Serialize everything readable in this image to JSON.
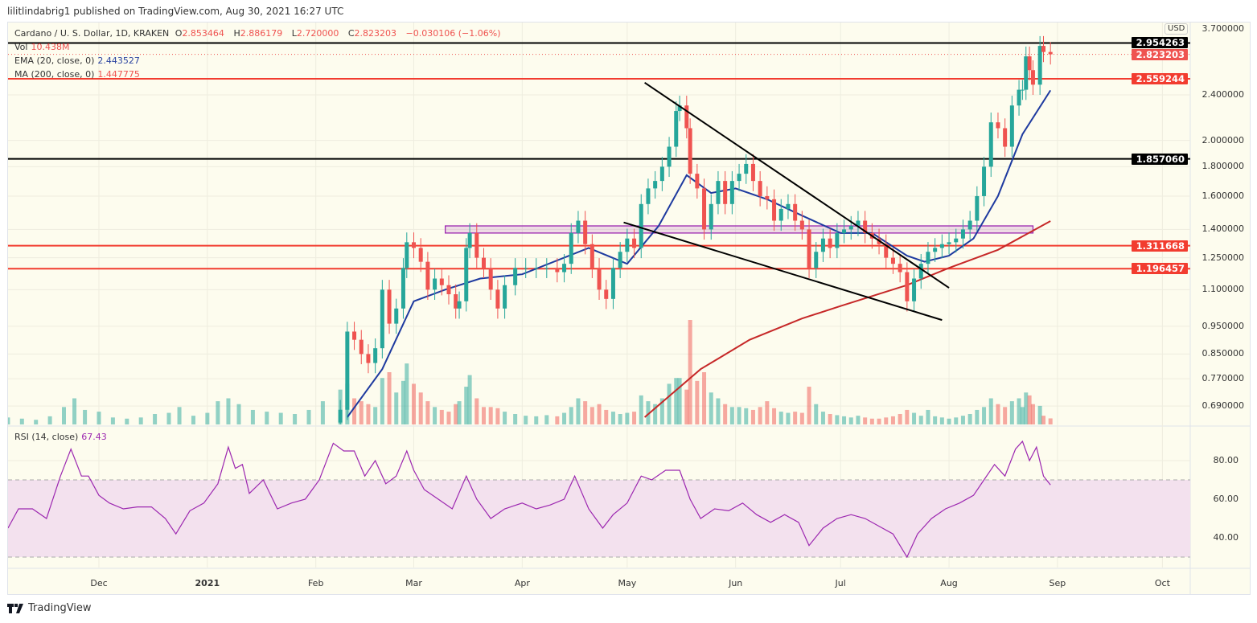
{
  "header": {
    "published": "lilitlindabrig1 published on TradingView.com, Aug 30, 2021 16:27 UTC"
  },
  "legend": {
    "symbol": "Cardano / U. S. Dollar, 1D, KRAKEN",
    "o_label": "O",
    "o": "2.853464",
    "h_label": "H",
    "h": "2.886179",
    "l_label": "L",
    "l": "2.720000",
    "c_label": "C",
    "c": "2.823203",
    "change": "−0.030106 (−1.06%)",
    "vol_label": "Vol",
    "vol": "10.438M",
    "ema_label": "EMA (20, close, 0)",
    "ema": "2.443527",
    "ma_label": "MA (200, close, 0)",
    "ma": "1.447775",
    "rsi_label": "RSI (14, close)",
    "rsi": "67.43"
  },
  "price_axis": {
    "currency": "USD",
    "ticks": [
      "3.700000",
      "2.400000",
      "2.000000",
      "1.800000",
      "1.600000",
      "1.400000",
      "1.250000",
      "1.100000",
      "0.950000",
      "0.850000",
      "0.770000",
      "0.690000"
    ]
  },
  "rsi_axis": {
    "ticks": [
      "80.00",
      "60.00",
      "40.00"
    ]
  },
  "time_axis": {
    "ticks": [
      "Dec",
      "2021",
      "Feb",
      "Mar",
      "Apr",
      "May",
      "Jun",
      "Jul",
      "Aug",
      "Sep",
      "Oct"
    ]
  },
  "price_tags": [
    {
      "value": "2.954263",
      "color": "#000000"
    },
    {
      "value": "2.823203",
      "color": "#ef5350"
    },
    {
      "value": "2.559244",
      "color": "#f23c2f"
    },
    {
      "value": "1.857060",
      "color": "#000000"
    },
    {
      "value": "1.311668",
      "color": "#f23c2f"
    },
    {
      "value": "1.196457",
      "color": "#f23c2f"
    }
  ],
  "colors": {
    "up": "#26a69a",
    "down": "#ef5350",
    "ema": "#1e3a9f",
    "ma": "#c62828",
    "rsi": "#9c27b0",
    "rsi_band": "#f3e1ee",
    "zone": "#9c27b0"
  },
  "footer": {
    "brand": "TradingView"
  },
  "chart_data": {
    "type": "candlestick",
    "scale": "log",
    "ylim": [
      0.66,
      3.7
    ],
    "xlim": [
      "2020-11-05",
      "2021-10-10"
    ],
    "candles": [
      [
        "2021-02-08",
        0.68,
        60
      ],
      [
        "2021-02-10",
        0.93,
        70
      ],
      [
        "2021-02-12",
        0.9,
        45
      ],
      [
        "2021-02-14",
        0.85,
        40
      ],
      [
        "2021-02-16",
        0.82,
        35
      ],
      [
        "2021-02-18",
        0.87,
        30
      ],
      [
        "2021-02-20",
        1.1,
        80
      ],
      [
        "2021-02-22",
        0.96,
        90
      ],
      [
        "2021-02-24",
        1.02,
        55
      ],
      [
        "2021-02-26",
        1.2,
        75
      ],
      [
        "2021-02-27",
        1.33,
        105
      ],
      [
        "2021-03-01",
        1.3,
        70
      ],
      [
        "2021-03-03",
        1.23,
        55
      ],
      [
        "2021-03-05",
        1.1,
        40
      ],
      [
        "2021-03-07",
        1.15,
        30
      ],
      [
        "2021-03-09",
        1.12,
        25
      ],
      [
        "2021-03-11",
        1.08,
        22
      ],
      [
        "2021-03-13",
        1.02,
        35
      ],
      [
        "2021-03-14",
        1.05,
        40
      ],
      [
        "2021-03-16",
        1.3,
        65
      ],
      [
        "2021-03-17",
        1.38,
        85
      ],
      [
        "2021-03-19",
        1.25,
        45
      ],
      [
        "2021-03-21",
        1.2,
        30
      ],
      [
        "2021-03-23",
        1.1,
        30
      ],
      [
        "2021-03-25",
        1.02,
        28
      ],
      [
        "2021-03-27",
        1.12,
        22
      ],
      [
        "2021-03-30",
        1.2,
        18
      ],
      [
        "2021-04-02",
        1.2,
        15
      ],
      [
        "2021-04-05",
        1.2,
        14
      ],
      [
        "2021-04-08",
        1.2,
        16
      ],
      [
        "2021-04-11",
        1.18,
        14
      ],
      [
        "2021-04-13",
        1.22,
        20
      ],
      [
        "2021-04-15",
        1.38,
        30
      ],
      [
        "2021-04-17",
        1.45,
        45
      ],
      [
        "2021-04-19",
        1.32,
        40
      ],
      [
        "2021-04-21",
        1.2,
        30
      ],
      [
        "2021-04-23",
        1.1,
        35
      ],
      [
        "2021-04-25",
        1.06,
        25
      ],
      [
        "2021-04-27",
        1.2,
        22
      ],
      [
        "2021-04-29",
        1.28,
        18
      ],
      [
        "2021-05-01",
        1.35,
        20
      ],
      [
        "2021-05-03",
        1.3,
        22
      ],
      [
        "2021-05-05",
        1.55,
        50
      ],
      [
        "2021-05-07",
        1.65,
        40
      ],
      [
        "2021-05-09",
        1.7,
        35
      ],
      [
        "2021-05-11",
        1.8,
        45
      ],
      [
        "2021-05-13",
        1.95,
        70
      ],
      [
        "2021-05-15",
        2.25,
        80
      ],
      [
        "2021-05-16",
        2.3,
        80
      ],
      [
        "2021-05-18",
        2.1,
        60
      ],
      [
        "2021-05-19",
        1.75,
        180
      ],
      [
        "2021-05-21",
        1.65,
        75
      ],
      [
        "2021-05-23",
        1.4,
        90
      ],
      [
        "2021-05-25",
        1.55,
        55
      ],
      [
        "2021-05-27",
        1.7,
        45
      ],
      [
        "2021-05-29",
        1.55,
        35
      ],
      [
        "2021-05-31",
        1.7,
        30
      ],
      [
        "2021-06-02",
        1.75,
        30
      ],
      [
        "2021-06-04",
        1.82,
        28
      ],
      [
        "2021-06-06",
        1.7,
        25
      ],
      [
        "2021-06-08",
        1.6,
        30
      ],
      [
        "2021-06-10",
        1.58,
        40
      ],
      [
        "2021-06-12",
        1.45,
        28
      ],
      [
        "2021-06-14",
        1.52,
        22
      ],
      [
        "2021-06-16",
        1.55,
        20
      ],
      [
        "2021-06-18",
        1.45,
        22
      ],
      [
        "2021-06-20",
        1.4,
        20
      ],
      [
        "2021-06-22",
        1.2,
        65
      ],
      [
        "2021-06-24",
        1.28,
        35
      ],
      [
        "2021-06-26",
        1.35,
        22
      ],
      [
        "2021-06-28",
        1.3,
        18
      ],
      [
        "2021-06-30",
        1.38,
        16
      ],
      [
        "2021-07-02",
        1.4,
        14
      ],
      [
        "2021-07-04",
        1.42,
        12
      ],
      [
        "2021-07-06",
        1.45,
        15
      ],
      [
        "2021-07-08",
        1.38,
        12
      ],
      [
        "2021-07-10",
        1.35,
        10
      ],
      [
        "2021-07-12",
        1.32,
        10
      ],
      [
        "2021-07-14",
        1.25,
        12
      ],
      [
        "2021-07-16",
        1.22,
        14
      ],
      [
        "2021-07-18",
        1.18,
        18
      ],
      [
        "2021-07-20",
        1.05,
        25
      ],
      [
        "2021-07-22",
        1.15,
        20
      ],
      [
        "2021-07-24",
        1.22,
        15
      ],
      [
        "2021-07-26",
        1.28,
        25
      ],
      [
        "2021-07-28",
        1.3,
        14
      ],
      [
        "2021-07-30",
        1.32,
        12
      ],
      [
        "2021-08-01",
        1.33,
        10
      ],
      [
        "2021-08-03",
        1.35,
        12
      ],
      [
        "2021-08-05",
        1.4,
        15
      ],
      [
        "2021-08-07",
        1.45,
        18
      ],
      [
        "2021-08-09",
        1.6,
        25
      ],
      [
        "2021-08-11",
        1.8,
        30
      ],
      [
        "2021-08-13",
        2.15,
        45
      ],
      [
        "2021-08-15",
        2.1,
        35
      ],
      [
        "2021-08-17",
        1.95,
        30
      ],
      [
        "2021-08-19",
        2.3,
        40
      ],
      [
        "2021-08-21",
        2.45,
        45
      ],
      [
        "2021-08-22",
        2.45,
        30
      ],
      [
        "2021-08-23",
        2.8,
        55
      ],
      [
        "2021-08-24",
        2.65,
        50
      ],
      [
        "2021-08-25",
        2.5,
        35
      ],
      [
        "2021-08-27",
        2.92,
        32
      ],
      [
        "2021-08-28",
        2.85,
        15
      ],
      [
        "2021-08-30",
        2.823203,
        10.438
      ]
    ],
    "early_volume": [
      [
        "2020-11-05",
        12
      ],
      [
        "2020-11-09",
        10
      ],
      [
        "2020-11-13",
        8
      ],
      [
        "2020-11-17",
        14
      ],
      [
        "2020-11-21",
        30
      ],
      [
        "2020-11-24",
        45
      ],
      [
        "2020-11-27",
        25
      ],
      [
        "2020-12-01",
        22
      ],
      [
        "2020-12-05",
        12
      ],
      [
        "2020-12-09",
        10
      ],
      [
        "2020-12-13",
        12
      ],
      [
        "2020-12-17",
        18
      ],
      [
        "2020-12-21",
        20
      ],
      [
        "2020-12-24",
        30
      ],
      [
        "2020-12-28",
        15
      ],
      [
        "2021-01-01",
        20
      ],
      [
        "2021-01-04",
        40
      ],
      [
        "2021-01-07",
        45
      ],
      [
        "2021-01-10",
        35
      ],
      [
        "2021-01-14",
        25
      ],
      [
        "2021-01-18",
        22
      ],
      [
        "2021-01-22",
        20
      ],
      [
        "2021-01-26",
        18
      ],
      [
        "2021-01-30",
        25
      ],
      [
        "2021-02-03",
        40
      ]
    ],
    "ema20": [
      [
        "2021-02-10",
        0.66
      ],
      [
        "2021-02-20",
        0.8
      ],
      [
        "2021-03-01",
        1.05
      ],
      [
        "2021-03-10",
        1.1
      ],
      [
        "2021-03-20",
        1.15
      ],
      [
        "2021-04-01",
        1.17
      ],
      [
        "2021-04-20",
        1.3
      ],
      [
        "2021-05-01",
        1.22
      ],
      [
        "2021-05-10",
        1.42
      ],
      [
        "2021-05-18",
        1.74
      ],
      [
        "2021-05-25",
        1.62
      ],
      [
        "2021-06-01",
        1.65
      ],
      [
        "2021-06-10",
        1.58
      ],
      [
        "2021-06-20",
        1.48
      ],
      [
        "2021-07-01",
        1.38
      ],
      [
        "2021-07-10",
        1.38
      ],
      [
        "2021-07-20",
        1.26
      ],
      [
        "2021-07-25",
        1.23
      ],
      [
        "2021-08-01",
        1.26
      ],
      [
        "2021-08-08",
        1.35
      ],
      [
        "2021-08-15",
        1.6
      ],
      [
        "2021-08-22",
        2.05
      ],
      [
        "2021-08-30",
        2.443527
      ]
    ],
    "ma200": [
      [
        "2021-05-06",
        0.66
      ],
      [
        "2021-05-22",
        0.8
      ],
      [
        "2021-06-05",
        0.9
      ],
      [
        "2021-06-20",
        0.98
      ],
      [
        "2021-07-01",
        1.03
      ],
      [
        "2021-07-20",
        1.12
      ],
      [
        "2021-08-01",
        1.2
      ],
      [
        "2021-08-15",
        1.29
      ],
      [
        "2021-08-30",
        1.447775
      ]
    ],
    "rsi": [
      [
        "2020-11-05",
        45
      ],
      [
        "2020-11-08",
        55
      ],
      [
        "2020-11-12",
        55
      ],
      [
        "2020-11-16",
        50
      ],
      [
        "2020-11-20",
        72
      ],
      [
        "2020-11-23",
        86
      ],
      [
        "2020-11-26",
        72
      ],
      [
        "2020-11-28",
        72
      ],
      [
        "2020-12-01",
        62
      ],
      [
        "2020-12-04",
        58
      ],
      [
        "2020-12-08",
        55
      ],
      [
        "2020-12-12",
        56
      ],
      [
        "2020-12-16",
        56
      ],
      [
        "2020-12-20",
        50
      ],
      [
        "2020-12-23",
        42
      ],
      [
        "2020-12-27",
        54
      ],
      [
        "2020-12-31",
        58
      ],
      [
        "2021-01-04",
        68
      ],
      [
        "2021-01-07",
        87
      ],
      [
        "2021-01-09",
        76
      ],
      [
        "2021-01-11",
        78
      ],
      [
        "2021-01-13",
        63
      ],
      [
        "2021-01-17",
        70
      ],
      [
        "2021-01-21",
        55
      ],
      [
        "2021-01-25",
        58
      ],
      [
        "2021-01-29",
        60
      ],
      [
        "2021-02-02",
        70
      ],
      [
        "2021-02-06",
        89
      ],
      [
        "2021-02-09",
        85
      ],
      [
        "2021-02-12",
        85
      ],
      [
        "2021-02-15",
        72
      ],
      [
        "2021-02-18",
        80
      ],
      [
        "2021-02-21",
        68
      ],
      [
        "2021-02-24",
        72
      ],
      [
        "2021-02-27",
        85
      ],
      [
        "2021-03-01",
        75
      ],
      [
        "2021-03-04",
        65
      ],
      [
        "2021-03-08",
        60
      ],
      [
        "2021-03-12",
        55
      ],
      [
        "2021-03-16",
        72
      ],
      [
        "2021-03-19",
        60
      ],
      [
        "2021-03-23",
        50
      ],
      [
        "2021-03-27",
        55
      ],
      [
        "2021-04-01",
        58
      ],
      [
        "2021-04-05",
        55
      ],
      [
        "2021-04-09",
        57
      ],
      [
        "2021-04-13",
        60
      ],
      [
        "2021-04-16",
        72
      ],
      [
        "2021-04-20",
        55
      ],
      [
        "2021-04-24",
        45
      ],
      [
        "2021-04-27",
        52
      ],
      [
        "2021-05-01",
        58
      ],
      [
        "2021-05-05",
        72
      ],
      [
        "2021-05-08",
        70
      ],
      [
        "2021-05-12",
        75
      ],
      [
        "2021-05-16",
        75
      ],
      [
        "2021-05-19",
        60
      ],
      [
        "2021-05-22",
        50
      ],
      [
        "2021-05-26",
        55
      ],
      [
        "2021-05-30",
        54
      ],
      [
        "2021-06-03",
        58
      ],
      [
        "2021-06-07",
        52
      ],
      [
        "2021-06-11",
        48
      ],
      [
        "2021-06-15",
        52
      ],
      [
        "2021-06-19",
        48
      ],
      [
        "2021-06-22",
        36
      ],
      [
        "2021-06-26",
        45
      ],
      [
        "2021-06-30",
        50
      ],
      [
        "2021-07-04",
        52
      ],
      [
        "2021-07-08",
        50
      ],
      [
        "2021-07-12",
        46
      ],
      [
        "2021-07-16",
        42
      ],
      [
        "2021-07-20",
        30
      ],
      [
        "2021-07-23",
        42
      ],
      [
        "2021-07-27",
        50
      ],
      [
        "2021-07-31",
        55
      ],
      [
        "2021-08-04",
        58
      ],
      [
        "2021-08-08",
        62
      ],
      [
        "2021-08-11",
        70
      ],
      [
        "2021-08-14",
        78
      ],
      [
        "2021-08-17",
        72
      ],
      [
        "2021-08-20",
        86
      ],
      [
        "2021-08-22",
        90
      ],
      [
        "2021-08-24",
        80
      ],
      [
        "2021-08-26",
        87
      ],
      [
        "2021-08-28",
        72
      ],
      [
        "2021-08-30",
        67.43
      ]
    ],
    "horizontal_levels": [
      {
        "price": 2.954263,
        "color": "#000000"
      },
      {
        "price": 2.559244,
        "color": "#f23c2f"
      },
      {
        "price": 1.85706,
        "color": "#000000"
      },
      {
        "price": 1.311668,
        "color": "#f23c2f"
      },
      {
        "price": 1.196457,
        "color": "#f23c2f"
      }
    ],
    "current_price": 2.823203,
    "trendlines": [
      {
        "from": [
          "2021-05-06",
          2.52
        ],
        "to": [
          "2021-08-01",
          1.108
        ]
      },
      {
        "from": [
          "2021-04-30",
          1.44
        ],
        "to": [
          "2021-07-30",
          0.974
        ]
      }
    ],
    "zone": {
      "from": "2021-03-10",
      "to": "2021-08-25",
      "top": 1.42,
      "bottom": 1.38
    },
    "rsi_levels": {
      "upper": 70,
      "lower": 30
    }
  }
}
